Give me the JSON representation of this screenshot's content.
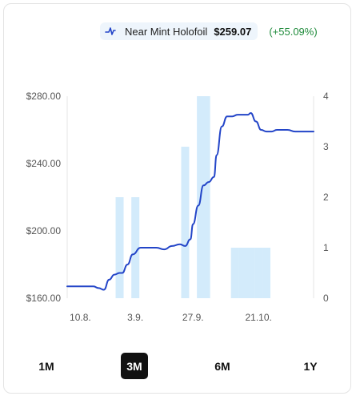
{
  "legend": {
    "icon": "sparkline-icon",
    "name": "Near Mint Holofoil",
    "price": "$259.07",
    "change": "(+55.09%)"
  },
  "ranges": [
    "1M",
    "3M",
    "6M",
    "1Y"
  ],
  "active_range": "3M",
  "colors": {
    "line": "#2345c8",
    "bars": "#d3ebfb",
    "positive": "#1e8a3a",
    "active_bg": "#111111"
  },
  "chart_data": {
    "type": "line",
    "title": "",
    "y_left": {
      "ticks": [
        "$160.00",
        "$200.00",
        "$240.00",
        "$280.00"
      ],
      "range": [
        160,
        280
      ]
    },
    "y_right": {
      "ticks": [
        "0",
        "1",
        "2",
        "3",
        "4"
      ],
      "range": [
        0,
        4
      ]
    },
    "x_ticks": [
      "10.8.",
      "3.9.",
      "27.9.",
      "21.10."
    ],
    "grid": true,
    "series": [
      {
        "name": "Near Mint Holofoil",
        "kind": "line",
        "x": [
          0,
          3,
          6,
          8,
          10,
          12,
          14,
          16,
          18,
          20,
          21,
          23,
          25,
          28,
          31,
          34,
          37,
          40,
          43,
          45,
          47,
          48,
          50,
          52,
          54,
          56,
          57,
          59,
          61,
          63,
          65,
          67,
          69,
          70,
          72,
          74,
          76,
          78,
          80,
          82,
          84,
          87,
          90,
          94
        ],
        "values": [
          167,
          167,
          167,
          167,
          167,
          166,
          165,
          171,
          174,
          175,
          175,
          180,
          186,
          190,
          190,
          190,
          189,
          191,
          192,
          191,
          195,
          204,
          215,
          227,
          229,
          232,
          245,
          262,
          268,
          268,
          269,
          269,
          269,
          270,
          265,
          260,
          259,
          259,
          260,
          260,
          260,
          259,
          259,
          259
        ]
      },
      {
        "name": "",
        "kind": "bar",
        "x": [
          20,
          26,
          45,
          51,
          53,
          64,
          67,
          70,
          73,
          76
        ],
        "values": [
          2,
          2,
          3,
          4,
          4,
          1,
          1,
          1,
          1,
          1
        ]
      }
    ]
  }
}
